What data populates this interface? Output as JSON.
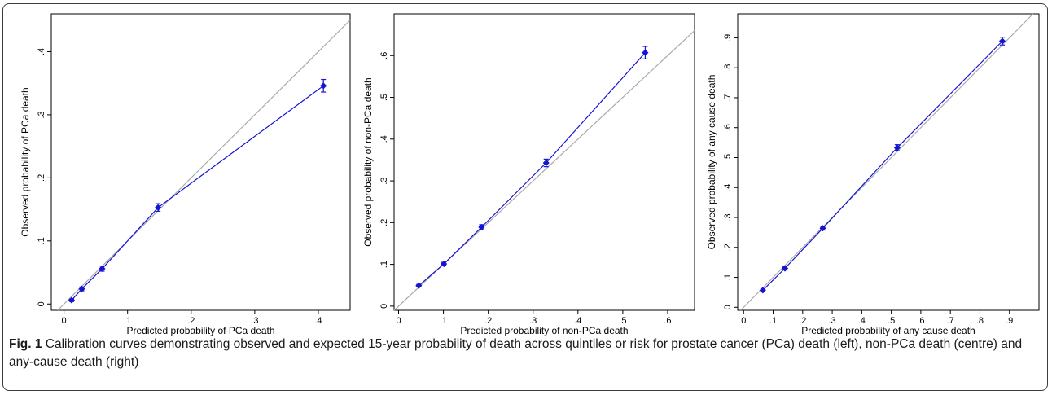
{
  "caption": {
    "label": "Fig. 1",
    "text": "Calibration curves demonstrating observed and expected 15-year probability of death across quintiles or risk for prostate cancer (PCa) death (left), non-PCa death (centre) and any-cause death (right)"
  },
  "colors": {
    "series": "#1414d2",
    "reference": "#a9a9a9",
    "frame": "#3c3c3c"
  },
  "chart_data": [
    {
      "type": "scatter",
      "title": "",
      "xlabel": "Predicted probability of PCa death",
      "ylabel": "Observed probability of PCa death",
      "xlim": [
        -0.02,
        0.45
      ],
      "ylim": [
        -0.01,
        0.46
      ],
      "xticks": [
        0,
        0.1,
        0.2,
        0.3,
        0.4
      ],
      "xtick_labels": [
        "0",
        ".1",
        ".2",
        ".3",
        ".4"
      ],
      "yticks": [
        0,
        0.1,
        0.2,
        0.3,
        0.4
      ],
      "ytick_labels": [
        "0",
        ".1",
        ".2",
        ".3",
        ".4"
      ],
      "reference_line": "y = x",
      "grid": false,
      "series": [
        {
          "x": [
            0.012,
            0.028,
            0.06,
            0.148,
            0.408
          ],
          "y": [
            0.006,
            0.024,
            0.056,
            0.153,
            0.346
          ],
          "err": [
            0.002,
            0.003,
            0.004,
            0.006,
            0.01
          ]
        }
      ]
    },
    {
      "type": "scatter",
      "title": "",
      "xlabel": "Predicted probability of non-PCa death",
      "ylabel": "Observed probability of non-PCa death",
      "xlim": [
        -0.01,
        0.66
      ],
      "ylim": [
        -0.01,
        0.7
      ],
      "xticks": [
        0,
        0.1,
        0.2,
        0.3,
        0.4,
        0.5,
        0.6
      ],
      "xtick_labels": [
        "0",
        ".1",
        ".2",
        ".3",
        ".4",
        ".5",
        ".6"
      ],
      "yticks": [
        0,
        0.1,
        0.2,
        0.3,
        0.4,
        0.5,
        0.6
      ],
      "ytick_labels": [
        "0",
        ".1",
        ".2",
        ".3",
        ".4",
        ".5",
        ".6"
      ],
      "reference_line": "y = x",
      "grid": false,
      "series": [
        {
          "x": [
            0.045,
            0.101,
            0.185,
            0.329,
            0.55
          ],
          "y": [
            0.049,
            0.101,
            0.189,
            0.343,
            0.607
          ],
          "err": [
            0.003,
            0.004,
            0.006,
            0.009,
            0.015
          ]
        }
      ]
    },
    {
      "type": "scatter",
      "title": "",
      "xlabel": "Predicted probability of any cause death",
      "ylabel": "Observed probability of any cause death",
      "xlim": [
        -0.02,
        1.0
      ],
      "ylim": [
        -0.01,
        0.98
      ],
      "xticks": [
        0,
        0.1,
        0.2,
        0.3,
        0.4,
        0.5,
        0.6,
        0.7,
        0.8,
        0.9
      ],
      "xtick_labels": [
        "0",
        ".1",
        ".2",
        ".3",
        ".4",
        ".5",
        ".6",
        ".7",
        ".8",
        ".9"
      ],
      "yticks": [
        0,
        0.1,
        0.2,
        0.3,
        0.4,
        0.5,
        0.6,
        0.7,
        0.8,
        0.9
      ],
      "ytick_labels": [
        "0",
        ".1",
        ".2",
        ".3",
        ".4",
        ".5",
        ".6",
        ".7",
        ".8",
        ".9"
      ],
      "reference_line": "y = x",
      "grid": false,
      "series": [
        {
          "x": [
            0.065,
            0.14,
            0.268,
            0.52,
            0.876
          ],
          "y": [
            0.057,
            0.13,
            0.264,
            0.533,
            0.889
          ],
          "err": [
            0.004,
            0.005,
            0.006,
            0.01,
            0.013
          ]
        }
      ]
    }
  ]
}
